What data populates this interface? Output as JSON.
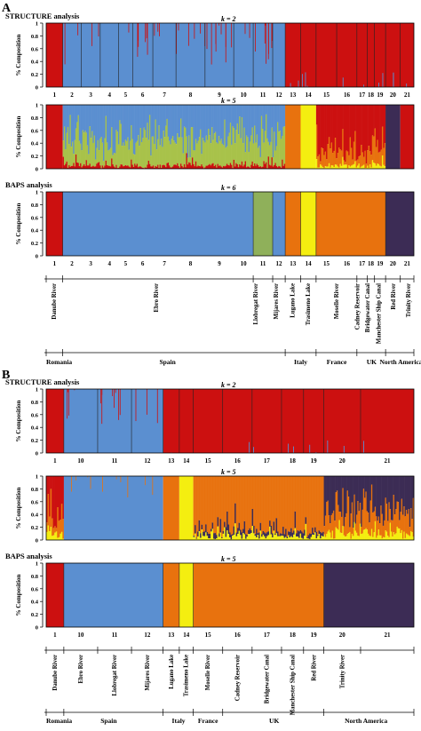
{
  "figure": {
    "section_labels": [
      "A",
      "B"
    ],
    "colors": {
      "red": "#cc1010",
      "blue": "#5b8fd0",
      "green_yellow": "#a8c24a",
      "yellow": "#f4ee10",
      "orange": "#e8720e",
      "purple": "#3c2c55",
      "green": "#8fb05a",
      "dark_orange": "#d86a10"
    }
  },
  "chart_data": [
    {
      "panel": "A",
      "type": "stacked-bar",
      "group_title": "STRUCTURE analysis",
      "k_label": "k = 2",
      "ylabel": "% Composition",
      "yticks": [
        "0",
        "0.2",
        "0.4",
        "0.6",
        "0.8",
        "1"
      ],
      "ylim": [
        0,
        1
      ],
      "populations": [
        "1",
        "2",
        "3",
        "4",
        "5",
        "6",
        "7",
        "8",
        "9",
        "10",
        "11",
        "12",
        "13",
        "14",
        "15",
        "16",
        "17",
        "18",
        "19",
        "20",
        "21"
      ],
      "segments": [
        {
          "pops": "1",
          "cluster": "red"
        },
        {
          "pops": "2-12",
          "cluster": "blue"
        },
        {
          "pops": "13-21",
          "cluster": "red"
        }
      ]
    },
    {
      "panel": "A",
      "type": "stacked-bar",
      "k_label": "k = 5",
      "ylabel": "% Composition",
      "yticks": [
        "0",
        "0.2",
        "0.4",
        "0.6",
        "0.8",
        "1"
      ],
      "ylim": [
        0,
        1
      ],
      "segments": [
        {
          "pops": "1",
          "cluster": "red"
        },
        {
          "pops": "2-12",
          "cluster": "blue / green-yellow mix"
        },
        {
          "pops": "13",
          "cluster": "orange"
        },
        {
          "pops": "14",
          "cluster": "yellow"
        },
        {
          "pops": "15-19",
          "cluster": "red / orange mix"
        },
        {
          "pops": "20",
          "cluster": "purple"
        },
        {
          "pops": "21",
          "cluster": "red"
        }
      ]
    },
    {
      "panel": "A",
      "type": "stacked-bar",
      "group_title": "BAPS analysis",
      "k_label": "k = 6",
      "ylabel": "% Composition",
      "yticks": [
        "0",
        "0.2",
        "0.4",
        "0.6",
        "0.8",
        "1"
      ],
      "ylim": [
        0,
        1
      ],
      "populations": [
        "1",
        "2",
        "3",
        "4",
        "5",
        "6",
        "7",
        "8",
        "9",
        "10",
        "11",
        "12",
        "13",
        "14",
        "15",
        "16",
        "17",
        "18",
        "19",
        "20",
        "21"
      ],
      "segments": [
        {
          "pops": "1",
          "cluster": "red"
        },
        {
          "pops": "2-10",
          "cluster": "blue"
        },
        {
          "pops": "11",
          "cluster": "green"
        },
        {
          "pops": "12",
          "cluster": "blue"
        },
        {
          "pops": "13",
          "cluster": "orange"
        },
        {
          "pops": "14",
          "cluster": "yellow"
        },
        {
          "pops": "15-19",
          "cluster": "orange"
        },
        {
          "pops": "20-21",
          "cluster": "purple"
        }
      ],
      "locations": [
        "Danube River",
        "Ebro River",
        "Llobregat River",
        "Mijares River",
        "Lugano Lake",
        "Trasimeno Lake",
        "Moselle River",
        "Cadney Reservoir",
        "Bridgewater Canal",
        "Manchester Ship Canal",
        "Red River",
        "Trinity River"
      ],
      "countries": [
        "Romania",
        "Spain",
        "Italy",
        "France",
        "UK",
        "North America"
      ]
    },
    {
      "panel": "B",
      "type": "stacked-bar",
      "group_title": "STRUCTURE analysis",
      "k_label": "k = 2",
      "ylabel": "% Composition",
      "yticks": [
        "0",
        "0.2",
        "0.4",
        "0.6",
        "0.8",
        "1"
      ],
      "ylim": [
        0,
        1
      ],
      "populations": [
        "1",
        "10",
        "11",
        "12",
        "13",
        "14",
        "15",
        "16",
        "17",
        "18",
        "19",
        "20",
        "21"
      ],
      "segments": [
        {
          "pops": "1",
          "cluster": "red"
        },
        {
          "pops": "10-12",
          "cluster": "blue"
        },
        {
          "pops": "13-21",
          "cluster": "red"
        }
      ]
    },
    {
      "panel": "B",
      "type": "stacked-bar",
      "k_label": "k = 5",
      "ylabel": "% Composition",
      "yticks": [
        "0",
        "0.2",
        "0.4",
        "0.6",
        "0.8",
        "1"
      ],
      "ylim": [
        0,
        1
      ],
      "segments": [
        {
          "pops": "1",
          "cluster": "red / orange mix"
        },
        {
          "pops": "10-12",
          "cluster": "blue"
        },
        {
          "pops": "13",
          "cluster": "orange"
        },
        {
          "pops": "14",
          "cluster": "yellow"
        },
        {
          "pops": "15-19",
          "cluster": "orange"
        },
        {
          "pops": "20-21",
          "cluster": "purple / orange mix"
        }
      ]
    },
    {
      "panel": "B",
      "type": "stacked-bar",
      "group_title": "BAPS analysis",
      "k_label": "k = 5",
      "ylabel": "% Composition",
      "yticks": [
        "0",
        "0.2",
        "0.4",
        "0.6",
        "0.8",
        "1"
      ],
      "ylim": [
        0,
        1
      ],
      "populations": [
        "1",
        "10",
        "11",
        "12",
        "13",
        "14",
        "15",
        "16",
        "17",
        "18",
        "19",
        "20",
        "21"
      ],
      "segments": [
        {
          "pops": "1",
          "cluster": "red"
        },
        {
          "pops": "10-12",
          "cluster": "blue"
        },
        {
          "pops": "13",
          "cluster": "orange"
        },
        {
          "pops": "14",
          "cluster": "yellow"
        },
        {
          "pops": "15-19",
          "cluster": "orange"
        },
        {
          "pops": "20-21",
          "cluster": "purple"
        }
      ],
      "locations": [
        "Danube River",
        "Ebro River",
        "Llobregat River",
        "Mijares River",
        "Lugano Lake",
        "Trasimeno Lake",
        "Moselle River",
        "Cadney Reservoir",
        "Bridgewater Canal",
        "Manchester Ship Canal",
        "Red River",
        "Trinity River"
      ],
      "countries": [
        "Romania",
        "Spain",
        "Italy",
        "France",
        "UK",
        "North America"
      ]
    }
  ]
}
